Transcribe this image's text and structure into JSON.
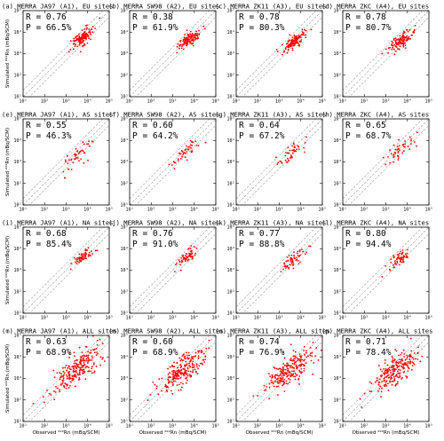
{
  "figure": {
    "xlabel": "Observed ²²²Rn (mBq/SCM)",
    "ylabel": "Simulated ²²²Rn (mBq/SCM)"
  },
  "colors": {
    "points": "#ff0000",
    "reference_lines": "#999999",
    "frame": "#000000"
  },
  "chart_data": [
    {
      "type": "scatter",
      "label": "(a)",
      "title": "MERRA JA97 (A1), EU sites",
      "R": "R  = 0.76",
      "P": "P  = 66.5%",
      "xscale": "log",
      "yscale": "log",
      "xlim": [
        10,
        100000
      ],
      "ylim": [
        10,
        100000
      ],
      "cluster": {
        "x_center": 5000,
        "y_center": 5000,
        "log_spread_x": 0.28,
        "log_spread_y": 0.3,
        "n": 130
      },
      "reference_lines": [
        "1:2",
        "1:1",
        "2:1"
      ],
      "xticks": [
        "10¹",
        "10²",
        "10³",
        "10⁴",
        "10⁵"
      ],
      "yticks": [
        "10¹",
        "10²",
        "10³",
        "10⁴",
        "10⁵"
      ]
    },
    {
      "type": "scatter",
      "label": "(b)",
      "title": "MERRA SW98 (A2), EU sites",
      "R": "R  = 0.38",
      "P": "P  = 61.9%",
      "xscale": "log",
      "yscale": "log",
      "xlim": [
        10,
        100000
      ],
      "ylim": [
        10,
        100000
      ],
      "cluster": {
        "x_center": 6000,
        "y_center": 4500,
        "log_spread_x": 0.25,
        "log_spread_y": 0.22,
        "n": 130
      },
      "reference_lines": [
        "1:2",
        "1:1",
        "2:1"
      ],
      "xticks": [
        "10¹",
        "10²",
        "10³",
        "10⁴",
        "10⁵"
      ],
      "yticks": [
        "10¹",
        "10²",
        "10³",
        "10⁴",
        "10⁵"
      ]
    },
    {
      "type": "scatter",
      "label": "(c)",
      "title": "MERRA ZK11 (A3), EU sites",
      "R": "R  = 0.78",
      "P": "P  = 80.3%",
      "xscale": "log",
      "yscale": "log",
      "xlim": [
        10,
        100000
      ],
      "ylim": [
        10,
        100000
      ],
      "cluster": {
        "x_center": 5000,
        "y_center": 3500,
        "log_spread_x": 0.27,
        "log_spread_y": 0.25,
        "n": 130
      },
      "reference_lines": [
        "1:2",
        "1:1",
        "2:1"
      ],
      "xticks": [
        "10¹",
        "10²",
        "10³",
        "10⁴",
        "10⁵"
      ],
      "yticks": [
        "10¹",
        "10²",
        "10³",
        "10⁴",
        "10⁵"
      ]
    },
    {
      "type": "scatter",
      "label": "(d)",
      "title": "MERRA ZKC (A4), EU sites",
      "R": "R  = 0.78",
      "P": "P  = 80.7%",
      "xscale": "log",
      "yscale": "log",
      "xlim": [
        10,
        100000
      ],
      "ylim": [
        10,
        100000
      ],
      "cluster": {
        "x_center": 5000,
        "y_center": 4000,
        "log_spread_x": 0.27,
        "log_spread_y": 0.25,
        "n": 130
      },
      "reference_lines": [
        "1:2",
        "1:1",
        "2:1"
      ],
      "xticks": [
        "10¹",
        "10²",
        "10³",
        "10⁴",
        "10⁵"
      ],
      "yticks": [
        "10¹",
        "10²",
        "10³",
        "10⁴",
        "10⁵"
      ]
    },
    {
      "type": "scatter",
      "label": "(e)",
      "title": "MERRA JA97 (A1), AS sites",
      "R": "R  = 0.55",
      "P": "P  = 46.3%",
      "xscale": "log",
      "yscale": "log",
      "xlim": [
        10,
        100000
      ],
      "ylim": [
        10,
        100000
      ],
      "cluster": {
        "x_center": 3500,
        "y_center": 1800,
        "log_spread_x": 0.3,
        "log_spread_y": 0.35,
        "n": 45
      },
      "reference_lines": [
        "1:2",
        "1:1",
        "2:1"
      ],
      "xticks": [
        "10¹",
        "10²",
        "10³",
        "10⁴",
        "10⁵"
      ],
      "yticks": [
        "10¹",
        "10²",
        "10³",
        "10⁴",
        "10⁵"
      ]
    },
    {
      "type": "scatter",
      "label": "(f)",
      "title": "MERRA SW98 (A2), AS sites",
      "R": "R  = 0.60",
      "P": "P  = 64.2%",
      "xscale": "log",
      "yscale": "log",
      "xlim": [
        10,
        100000
      ],
      "ylim": [
        10,
        100000
      ],
      "cluster": {
        "x_center": 4000,
        "y_center": 3000,
        "log_spread_x": 0.3,
        "log_spread_y": 0.3,
        "n": 45
      },
      "reference_lines": [
        "1:2",
        "1:1",
        "2:1"
      ],
      "xticks": [
        "10¹",
        "10²",
        "10³",
        "10⁴",
        "10⁵"
      ],
      "yticks": [
        "10¹",
        "10²",
        "10³",
        "10⁴",
        "10⁵"
      ]
    },
    {
      "type": "scatter",
      "label": "(g)",
      "title": "MERRA ZK11 (A3), AS sites",
      "R": "R  = 0.64",
      "P": "P  = 67.2%",
      "xscale": "log",
      "yscale": "log",
      "xlim": [
        10,
        100000
      ],
      "ylim": [
        10,
        100000
      ],
      "cluster": {
        "x_center": 4000,
        "y_center": 3000,
        "log_spread_x": 0.3,
        "log_spread_y": 0.3,
        "n": 45
      },
      "reference_lines": [
        "1:2",
        "1:1",
        "2:1"
      ],
      "xticks": [
        "10¹",
        "10²",
        "10³",
        "10⁴",
        "10⁵"
      ],
      "yticks": [
        "10¹",
        "10²",
        "10³",
        "10⁴",
        "10⁵"
      ]
    },
    {
      "type": "scatter",
      "label": "(h)",
      "title": "MERRA ZKC (A4), AS sites",
      "R": "R  = 0.65",
      "P": "P  = 68.7%",
      "xscale": "log",
      "yscale": "log",
      "xlim": [
        10,
        100000
      ],
      "ylim": [
        10,
        100000
      ],
      "cluster": {
        "x_center": 4000,
        "y_center": 3000,
        "log_spread_x": 0.3,
        "log_spread_y": 0.3,
        "n": 45
      },
      "reference_lines": [
        "1:2",
        "1:1",
        "2:1"
      ],
      "xticks": [
        "10¹",
        "10²",
        "10³",
        "10⁴",
        "10⁵"
      ],
      "yticks": [
        "10¹",
        "10²",
        "10³",
        "10⁴",
        "10⁵"
      ]
    },
    {
      "type": "scatter",
      "label": "(i)",
      "title": "MERRA JA97 (A1), NA sites",
      "R": "R  = 0.68",
      "P": "P  = 85.4%",
      "xscale": "log",
      "yscale": "log",
      "xlim": [
        10,
        100000
      ],
      "ylim": [
        10,
        100000
      ],
      "cluster": {
        "x_center": 5500,
        "y_center": 4000,
        "log_spread_x": 0.25,
        "log_spread_y": 0.2,
        "n": 60
      },
      "reference_lines": [
        "1:2",
        "1:1",
        "2:1"
      ],
      "xticks": [
        "10¹",
        "10²",
        "10³",
        "10⁴",
        "10⁵"
      ],
      "yticks": [
        "10¹",
        "10²",
        "10³",
        "10⁴",
        "10⁵"
      ]
    },
    {
      "type": "scatter",
      "label": "(j)",
      "title": "MERRA SW98 (A2), NA sites",
      "R": "R  = 0.76",
      "P": "P  = 91.0%",
      "xscale": "log",
      "yscale": "log",
      "xlim": [
        10,
        100000
      ],
      "ylim": [
        10,
        100000
      ],
      "cluster": {
        "x_center": 4500,
        "y_center": 4000,
        "log_spread_x": 0.28,
        "log_spread_y": 0.25,
        "n": 60
      },
      "reference_lines": [
        "1:2",
        "1:1",
        "2:1"
      ],
      "xticks": [
        "10¹",
        "10²",
        "10³",
        "10⁴",
        "10⁵"
      ],
      "yticks": [
        "10¹",
        "10²",
        "10³",
        "10⁴",
        "10⁵"
      ]
    },
    {
      "type": "scatter",
      "label": "(k)",
      "title": "MERRA ZK11 (A3), NA sites",
      "R": "R  = 0.77",
      "P": "P  = 88.8%",
      "xscale": "log",
      "yscale": "log",
      "xlim": [
        10,
        100000
      ],
      "ylim": [
        10,
        100000
      ],
      "cluster": {
        "x_center": 4500,
        "y_center": 3000,
        "log_spread_x": 0.28,
        "log_spread_y": 0.25,
        "n": 60
      },
      "reference_lines": [
        "1:2",
        "1:1",
        "2:1"
      ],
      "xticks": [
        "10¹",
        "10²",
        "10³",
        "10⁴",
        "10⁵"
      ],
      "yticks": [
        "10¹",
        "10²",
        "10³",
        "10⁴",
        "10⁵"
      ]
    },
    {
      "type": "scatter",
      "label": "(l)",
      "title": "MERRA ZKC (A4), NA sites",
      "R": "R  = 0.80",
      "P": "P  = 94.4%",
      "xscale": "log",
      "yscale": "log",
      "xlim": [
        10,
        100000
      ],
      "ylim": [
        10,
        100000
      ],
      "cluster": {
        "x_center": 4500,
        "y_center": 3500,
        "log_spread_x": 0.28,
        "log_spread_y": 0.25,
        "n": 60
      },
      "reference_lines": [
        "1:2",
        "1:1",
        "2:1"
      ],
      "xticks": [
        "10¹",
        "10²",
        "10³",
        "10⁴",
        "10⁵"
      ],
      "yticks": [
        "10¹",
        "10²",
        "10³",
        "10⁴",
        "10⁵"
      ]
    },
    {
      "type": "scatter",
      "label": "(m)",
      "title": "MERRA JA97 (A1), ALL sites",
      "R": "R  = 0.63",
      "P": "P  = 68.9%",
      "xscale": "log",
      "yscale": "log",
      "xlim": [
        10,
        100000
      ],
      "ylim": [
        10,
        100000
      ],
      "cluster": {
        "x_center": 3000,
        "y_center": 2500,
        "log_spread_x": 0.55,
        "log_spread_y": 0.55,
        "n": 230
      },
      "reference_lines": [
        "1:2",
        "1:1",
        "2:1"
      ],
      "xticks": [
        "10¹",
        "10²",
        "10³",
        "10⁴",
        "10⁵"
      ],
      "yticks": [
        "10¹",
        "10²",
        "10³",
        "10⁴",
        "10⁵"
      ]
    },
    {
      "type": "scatter",
      "label": "(n)",
      "title": "MERRA SW98 (A2), ALL sites",
      "R": "R  = 0.60",
      "P": "P  = 68.9%",
      "xscale": "log",
      "yscale": "log",
      "xlim": [
        10,
        100000
      ],
      "ylim": [
        10,
        100000
      ],
      "cluster": {
        "x_center": 3000,
        "y_center": 2500,
        "log_spread_x": 0.55,
        "log_spread_y": 0.5,
        "n": 230
      },
      "reference_lines": [
        "1:2",
        "1:1",
        "2:1"
      ],
      "xticks": [
        "10¹",
        "10²",
        "10³",
        "10⁴",
        "10⁵"
      ],
      "yticks": [
        "10¹",
        "10²",
        "10³",
        "10⁴",
        "10⁵"
      ]
    },
    {
      "type": "scatter",
      "label": "(o)",
      "title": "MERRA ZK11 (A3), ALL sites",
      "R": "R  = 0.74",
      "P": "P  = 76.9%",
      "xscale": "log",
      "yscale": "log",
      "xlim": [
        10,
        100000
      ],
      "ylim": [
        10,
        100000
      ],
      "cluster": {
        "x_center": 3000,
        "y_center": 2500,
        "log_spread_x": 0.55,
        "log_spread_y": 0.5,
        "n": 230
      },
      "reference_lines": [
        "1:2",
        "1:1",
        "2:1"
      ],
      "xticks": [
        "10¹",
        "10²",
        "10³",
        "10⁴",
        "10⁵"
      ],
      "yticks": [
        "10¹",
        "10²",
        "10³",
        "10⁴",
        "10⁵"
      ]
    },
    {
      "type": "scatter",
      "label": "(p)",
      "title": "MERRA ZKC (A4), ALL sites",
      "R": "R  = 0.71",
      "P": "P  = 78.4%",
      "xscale": "log",
      "yscale": "log",
      "xlim": [
        10,
        100000
      ],
      "ylim": [
        10,
        100000
      ],
      "cluster": {
        "x_center": 3000,
        "y_center": 2500,
        "log_spread_x": 0.55,
        "log_spread_y": 0.5,
        "n": 230
      },
      "reference_lines": [
        "1:2",
        "1:1",
        "2:1"
      ],
      "xticks": [
        "10¹",
        "10²",
        "10³",
        "10⁴",
        "10⁵"
      ],
      "yticks": [
        "10¹",
        "10²",
        "10³",
        "10⁴",
        "10⁵"
      ]
    }
  ]
}
